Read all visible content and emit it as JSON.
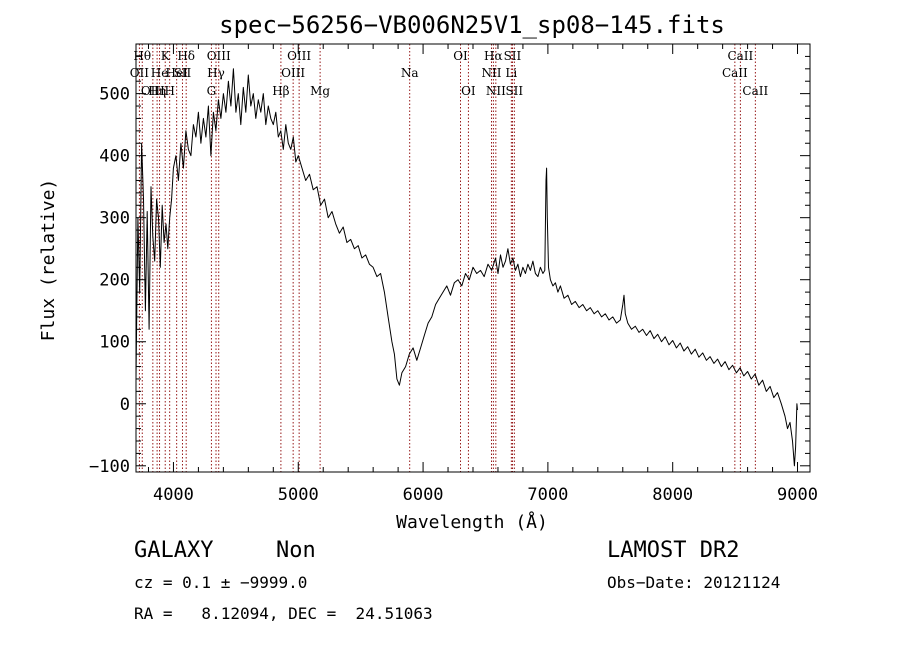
{
  "chart_data": {
    "type": "line",
    "title": "spec−56256−VB006N25V1_sp08−145.fits",
    "xlabel": "Wavelength (Å)",
    "ylabel": "Flux (relative)",
    "xlim": [
      3700,
      9100
    ],
    "ylim": [
      -110,
      580
    ],
    "xticks": [
      4000,
      5000,
      6000,
      7000,
      8000,
      9000
    ],
    "yticks": [
      -100,
      0,
      100,
      200,
      300,
      400,
      500
    ],
    "x_minor_step": 200,
    "y_minor_step": 20,
    "grid": false,
    "series": [
      {
        "line_color": "#000000",
        "points": [
          [
            3700,
            40
          ],
          [
            3715,
            300
          ],
          [
            3730,
            180
          ],
          [
            3745,
            420
          ],
          [
            3760,
            330
          ],
          [
            3775,
            150
          ],
          [
            3790,
            310
          ],
          [
            3805,
            120
          ],
          [
            3820,
            350
          ],
          [
            3835,
            270
          ],
          [
            3850,
            230
          ],
          [
            3865,
            330
          ],
          [
            3880,
            300
          ],
          [
            3895,
            220
          ],
          [
            3910,
            320
          ],
          [
            3925,
            260
          ],
          [
            3940,
            290
          ],
          [
            3955,
            250
          ],
          [
            3970,
            300
          ],
          [
            3985,
            330
          ],
          [
            4000,
            380
          ],
          [
            4020,
            400
          ],
          [
            4040,
            360
          ],
          [
            4060,
            420
          ],
          [
            4080,
            380
          ],
          [
            4100,
            440
          ],
          [
            4120,
            410
          ],
          [
            4140,
            400
          ],
          [
            4160,
            450
          ],
          [
            4180,
            430
          ],
          [
            4200,
            470
          ],
          [
            4220,
            420
          ],
          [
            4240,
            460
          ],
          [
            4260,
            430
          ],
          [
            4280,
            480
          ],
          [
            4300,
            400
          ],
          [
            4320,
            470
          ],
          [
            4340,
            440
          ],
          [
            4360,
            490
          ],
          [
            4380,
            460
          ],
          [
            4400,
            500
          ],
          [
            4420,
            470
          ],
          [
            4440,
            520
          ],
          [
            4460,
            480
          ],
          [
            4480,
            540
          ],
          [
            4500,
            470
          ],
          [
            4520,
            500
          ],
          [
            4540,
            450
          ],
          [
            4560,
            510
          ],
          [
            4580,
            470
          ],
          [
            4600,
            530
          ],
          [
            4620,
            480
          ],
          [
            4640,
            500
          ],
          [
            4660,
            460
          ],
          [
            4680,
            490
          ],
          [
            4700,
            470
          ],
          [
            4720,
            500
          ],
          [
            4740,
            450
          ],
          [
            4760,
            480
          ],
          [
            4780,
            460
          ],
          [
            4800,
            450
          ],
          [
            4820,
            470
          ],
          [
            4840,
            430
          ],
          [
            4860,
            440
          ],
          [
            4880,
            410
          ],
          [
            4900,
            450
          ],
          [
            4920,
            420
          ],
          [
            4940,
            410
          ],
          [
            4960,
            430
          ],
          [
            4980,
            390
          ],
          [
            5000,
            400
          ],
          [
            5030,
            380
          ],
          [
            5060,
            360
          ],
          [
            5090,
            370
          ],
          [
            5120,
            345
          ],
          [
            5150,
            350
          ],
          [
            5180,
            320
          ],
          [
            5210,
            330
          ],
          [
            5240,
            300
          ],
          [
            5270,
            310
          ],
          [
            5300,
            290
          ],
          [
            5330,
            275
          ],
          [
            5360,
            285
          ],
          [
            5390,
            260
          ],
          [
            5420,
            265
          ],
          [
            5450,
            250
          ],
          [
            5480,
            255
          ],
          [
            5510,
            235
          ],
          [
            5540,
            240
          ],
          [
            5570,
            225
          ],
          [
            5600,
            220
          ],
          [
            5630,
            205
          ],
          [
            5660,
            210
          ],
          [
            5690,
            180
          ],
          [
            5720,
            140
          ],
          [
            5750,
            100
          ],
          [
            5770,
            80
          ],
          [
            5790,
            40
          ],
          [
            5810,
            30
          ],
          [
            5830,
            50
          ],
          [
            5860,
            60
          ],
          [
            5890,
            80
          ],
          [
            5920,
            90
          ],
          [
            5950,
            70
          ],
          [
            5980,
            90
          ],
          [
            6010,
            110
          ],
          [
            6040,
            130
          ],
          [
            6070,
            140
          ],
          [
            6100,
            160
          ],
          [
            6130,
            170
          ],
          [
            6160,
            180
          ],
          [
            6190,
            190
          ],
          [
            6220,
            175
          ],
          [
            6250,
            195
          ],
          [
            6280,
            200
          ],
          [
            6310,
            190
          ],
          [
            6340,
            210
          ],
          [
            6370,
            200
          ],
          [
            6400,
            220
          ],
          [
            6430,
            210
          ],
          [
            6460,
            215
          ],
          [
            6490,
            205
          ],
          [
            6520,
            225
          ],
          [
            6550,
            215
          ],
          [
            6580,
            235
          ],
          [
            6600,
            210
          ],
          [
            6620,
            240
          ],
          [
            6640,
            220
          ],
          [
            6660,
            230
          ],
          [
            6680,
            250
          ],
          [
            6700,
            225
          ],
          [
            6720,
            235
          ],
          [
            6740,
            215
          ],
          [
            6760,
            225
          ],
          [
            6780,
            205
          ],
          [
            6800,
            220
          ],
          [
            6820,
            210
          ],
          [
            6840,
            225
          ],
          [
            6860,
            215
          ],
          [
            6880,
            230
          ],
          [
            6900,
            210
          ],
          [
            6920,
            205
          ],
          [
            6940,
            220
          ],
          [
            6960,
            210
          ],
          [
            6975,
            215
          ],
          [
            6985,
            360
          ],
          [
            6990,
            380
          ],
          [
            6995,
            300
          ],
          [
            7005,
            220
          ],
          [
            7020,
            200
          ],
          [
            7040,
            190
          ],
          [
            7060,
            195
          ],
          [
            7080,
            180
          ],
          [
            7100,
            190
          ],
          [
            7130,
            170
          ],
          [
            7160,
            175
          ],
          [
            7190,
            160
          ],
          [
            7220,
            165
          ],
          [
            7250,
            155
          ],
          [
            7280,
            160
          ],
          [
            7310,
            150
          ],
          [
            7340,
            155
          ],
          [
            7370,
            145
          ],
          [
            7400,
            150
          ],
          [
            7430,
            140
          ],
          [
            7460,
            145
          ],
          [
            7490,
            135
          ],
          [
            7520,
            140
          ],
          [
            7550,
            130
          ],
          [
            7580,
            135
          ],
          [
            7600,
            160
          ],
          [
            7610,
            175
          ],
          [
            7620,
            145
          ],
          [
            7640,
            130
          ],
          [
            7670,
            120
          ],
          [
            7700,
            125
          ],
          [
            7730,
            115
          ],
          [
            7760,
            120
          ],
          [
            7790,
            110
          ],
          [
            7820,
            118
          ],
          [
            7850,
            105
          ],
          [
            7880,
            112
          ],
          [
            7910,
            100
          ],
          [
            7940,
            108
          ],
          [
            7970,
            95
          ],
          [
            8000,
            102
          ],
          [
            8030,
            90
          ],
          [
            8060,
            98
          ],
          [
            8090,
            85
          ],
          [
            8120,
            92
          ],
          [
            8150,
            80
          ],
          [
            8180,
            88
          ],
          [
            8210,
            75
          ],
          [
            8240,
            82
          ],
          [
            8270,
            70
          ],
          [
            8300,
            76
          ],
          [
            8330,
            65
          ],
          [
            8360,
            72
          ],
          [
            8390,
            60
          ],
          [
            8420,
            68
          ],
          [
            8450,
            55
          ],
          [
            8480,
            62
          ],
          [
            8510,
            50
          ],
          [
            8540,
            58
          ],
          [
            8570,
            45
          ],
          [
            8600,
            52
          ],
          [
            8630,
            40
          ],
          [
            8660,
            48
          ],
          [
            8690,
            30
          ],
          [
            8720,
            38
          ],
          [
            8750,
            20
          ],
          [
            8780,
            28
          ],
          [
            8810,
            10
          ],
          [
            8840,
            18
          ],
          [
            8870,
            0
          ],
          [
            8900,
            -20
          ],
          [
            8920,
            -40
          ],
          [
            8940,
            -30
          ],
          [
            8960,
            -60
          ],
          [
            8975,
            -100
          ],
          [
            8985,
            -70
          ],
          [
            8995,
            0
          ],
          [
            9000,
            -10
          ]
        ]
      }
    ],
    "line_color_ref": "#8b0000",
    "lines": [
      {
        "x": 3750,
        "label": "Hθ",
        "row": 0
      },
      {
        "x": 3727,
        "label": "OII",
        "row": 1
      },
      {
        "x": 3835,
        "label": "OIII",
        "row": 2
      },
      {
        "x": 3889,
        "label": "He",
        "row": 1
      },
      {
        "x": 3869,
        "label": "Hη",
        "row": 2
      },
      {
        "x": 3934,
        "label": "K",
        "row": 0
      },
      {
        "x": 3970,
        "label": "H",
        "row": 2
      },
      {
        "x": 4026,
        "label": "HeI",
        "row": 1
      },
      {
        "x": 4072,
        "label": "SII",
        "row": 1
      },
      {
        "x": 4102,
        "label": "Hδ",
        "row": 0
      },
      {
        "x": 4304,
        "label": "G",
        "row": 2
      },
      {
        "x": 4341,
        "label": "Hγ",
        "row": 1
      },
      {
        "x": 4363,
        "label": "OIII",
        "row": 0
      },
      {
        "x": 4861,
        "label": "Hβ",
        "row": 2
      },
      {
        "x": 4959,
        "label": "OIII",
        "row": 1
      },
      {
        "x": 5007,
        "label": "OIII",
        "row": 0
      },
      {
        "x": 5175,
        "label": "Mg",
        "row": 2
      },
      {
        "x": 5893,
        "label": "Na",
        "row": 1
      },
      {
        "x": 6300,
        "label": "OI",
        "row": 0
      },
      {
        "x": 6363,
        "label": "OI",
        "row": 2
      },
      {
        "x": 6548,
        "label": "NII",
        "row": 1
      },
      {
        "x": 6563,
        "label": "Hα",
        "row": 0
      },
      {
        "x": 6583,
        "label": "NII",
        "row": 2
      },
      {
        "x": 6707,
        "label": "Li",
        "row": 1
      },
      {
        "x": 6716,
        "label": "SII",
        "row": 0
      },
      {
        "x": 6731,
        "label": "SII",
        "row": 2
      },
      {
        "x": 8498,
        "label": "CaII",
        "row": 1
      },
      {
        "x": 8542,
        "label": "CaII",
        "row": 0
      },
      {
        "x": 8662,
        "label": "CaII",
        "row": 2
      }
    ]
  },
  "footer": {
    "object_class": "GALAXY",
    "subclass": "Non",
    "survey": "LAMOST DR2",
    "cz_line": "cz = 0.1 ± −9999.0",
    "obs_date": "Obs−Date: 20121124",
    "radec_line": "RA =   8.12094, DEC =  24.51063"
  }
}
